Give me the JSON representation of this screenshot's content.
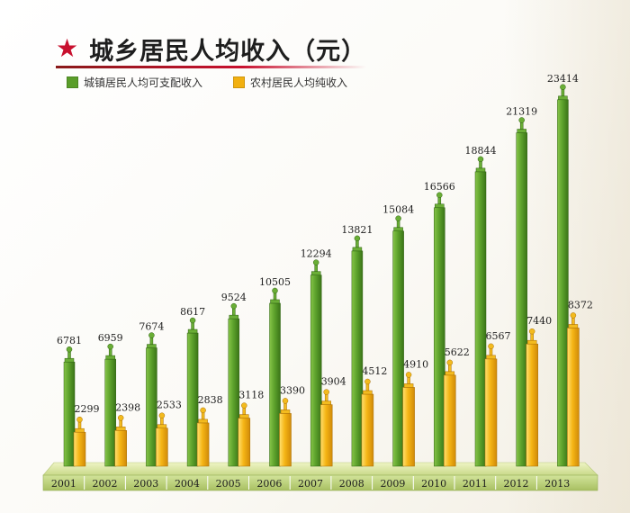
{
  "header": {
    "title": "城乡居民人均收入（元）"
  },
  "legend": {
    "items": [
      {
        "label": "城镇居民人均可支配收入",
        "color": "#5a9e2a"
      },
      {
        "label": "农村居民人均纯收入",
        "color": "#f2b010"
      }
    ]
  },
  "chart_data": {
    "type": "bar",
    "title": "城乡居民人均收入（元）",
    "xlabel": "",
    "ylabel": "",
    "categories": [
      "2001",
      "2002",
      "2003",
      "2004",
      "2005",
      "2006",
      "2007",
      "2008",
      "2009",
      "2010",
      "2011",
      "2012",
      "2013"
    ],
    "series": [
      {
        "name": "城镇居民人均可支配收入",
        "color": "#5a9e2a",
        "values": [
          6781,
          6959,
          7674,
          8617,
          9524,
          10505,
          12294,
          13821,
          15084,
          16566,
          18844,
          21319,
          23414
        ]
      },
      {
        "name": "农村居民人均纯收入",
        "color": "#f2b010",
        "values": [
          2299,
          2398,
          2533,
          2838,
          3118,
          3390,
          3904,
          4512,
          4910,
          5622,
          6567,
          7440,
          8372
        ]
      }
    ],
    "ylim": [
      0,
      23414
    ],
    "grid": false,
    "legend_position": "top-left",
    "data_labels": true
  }
}
